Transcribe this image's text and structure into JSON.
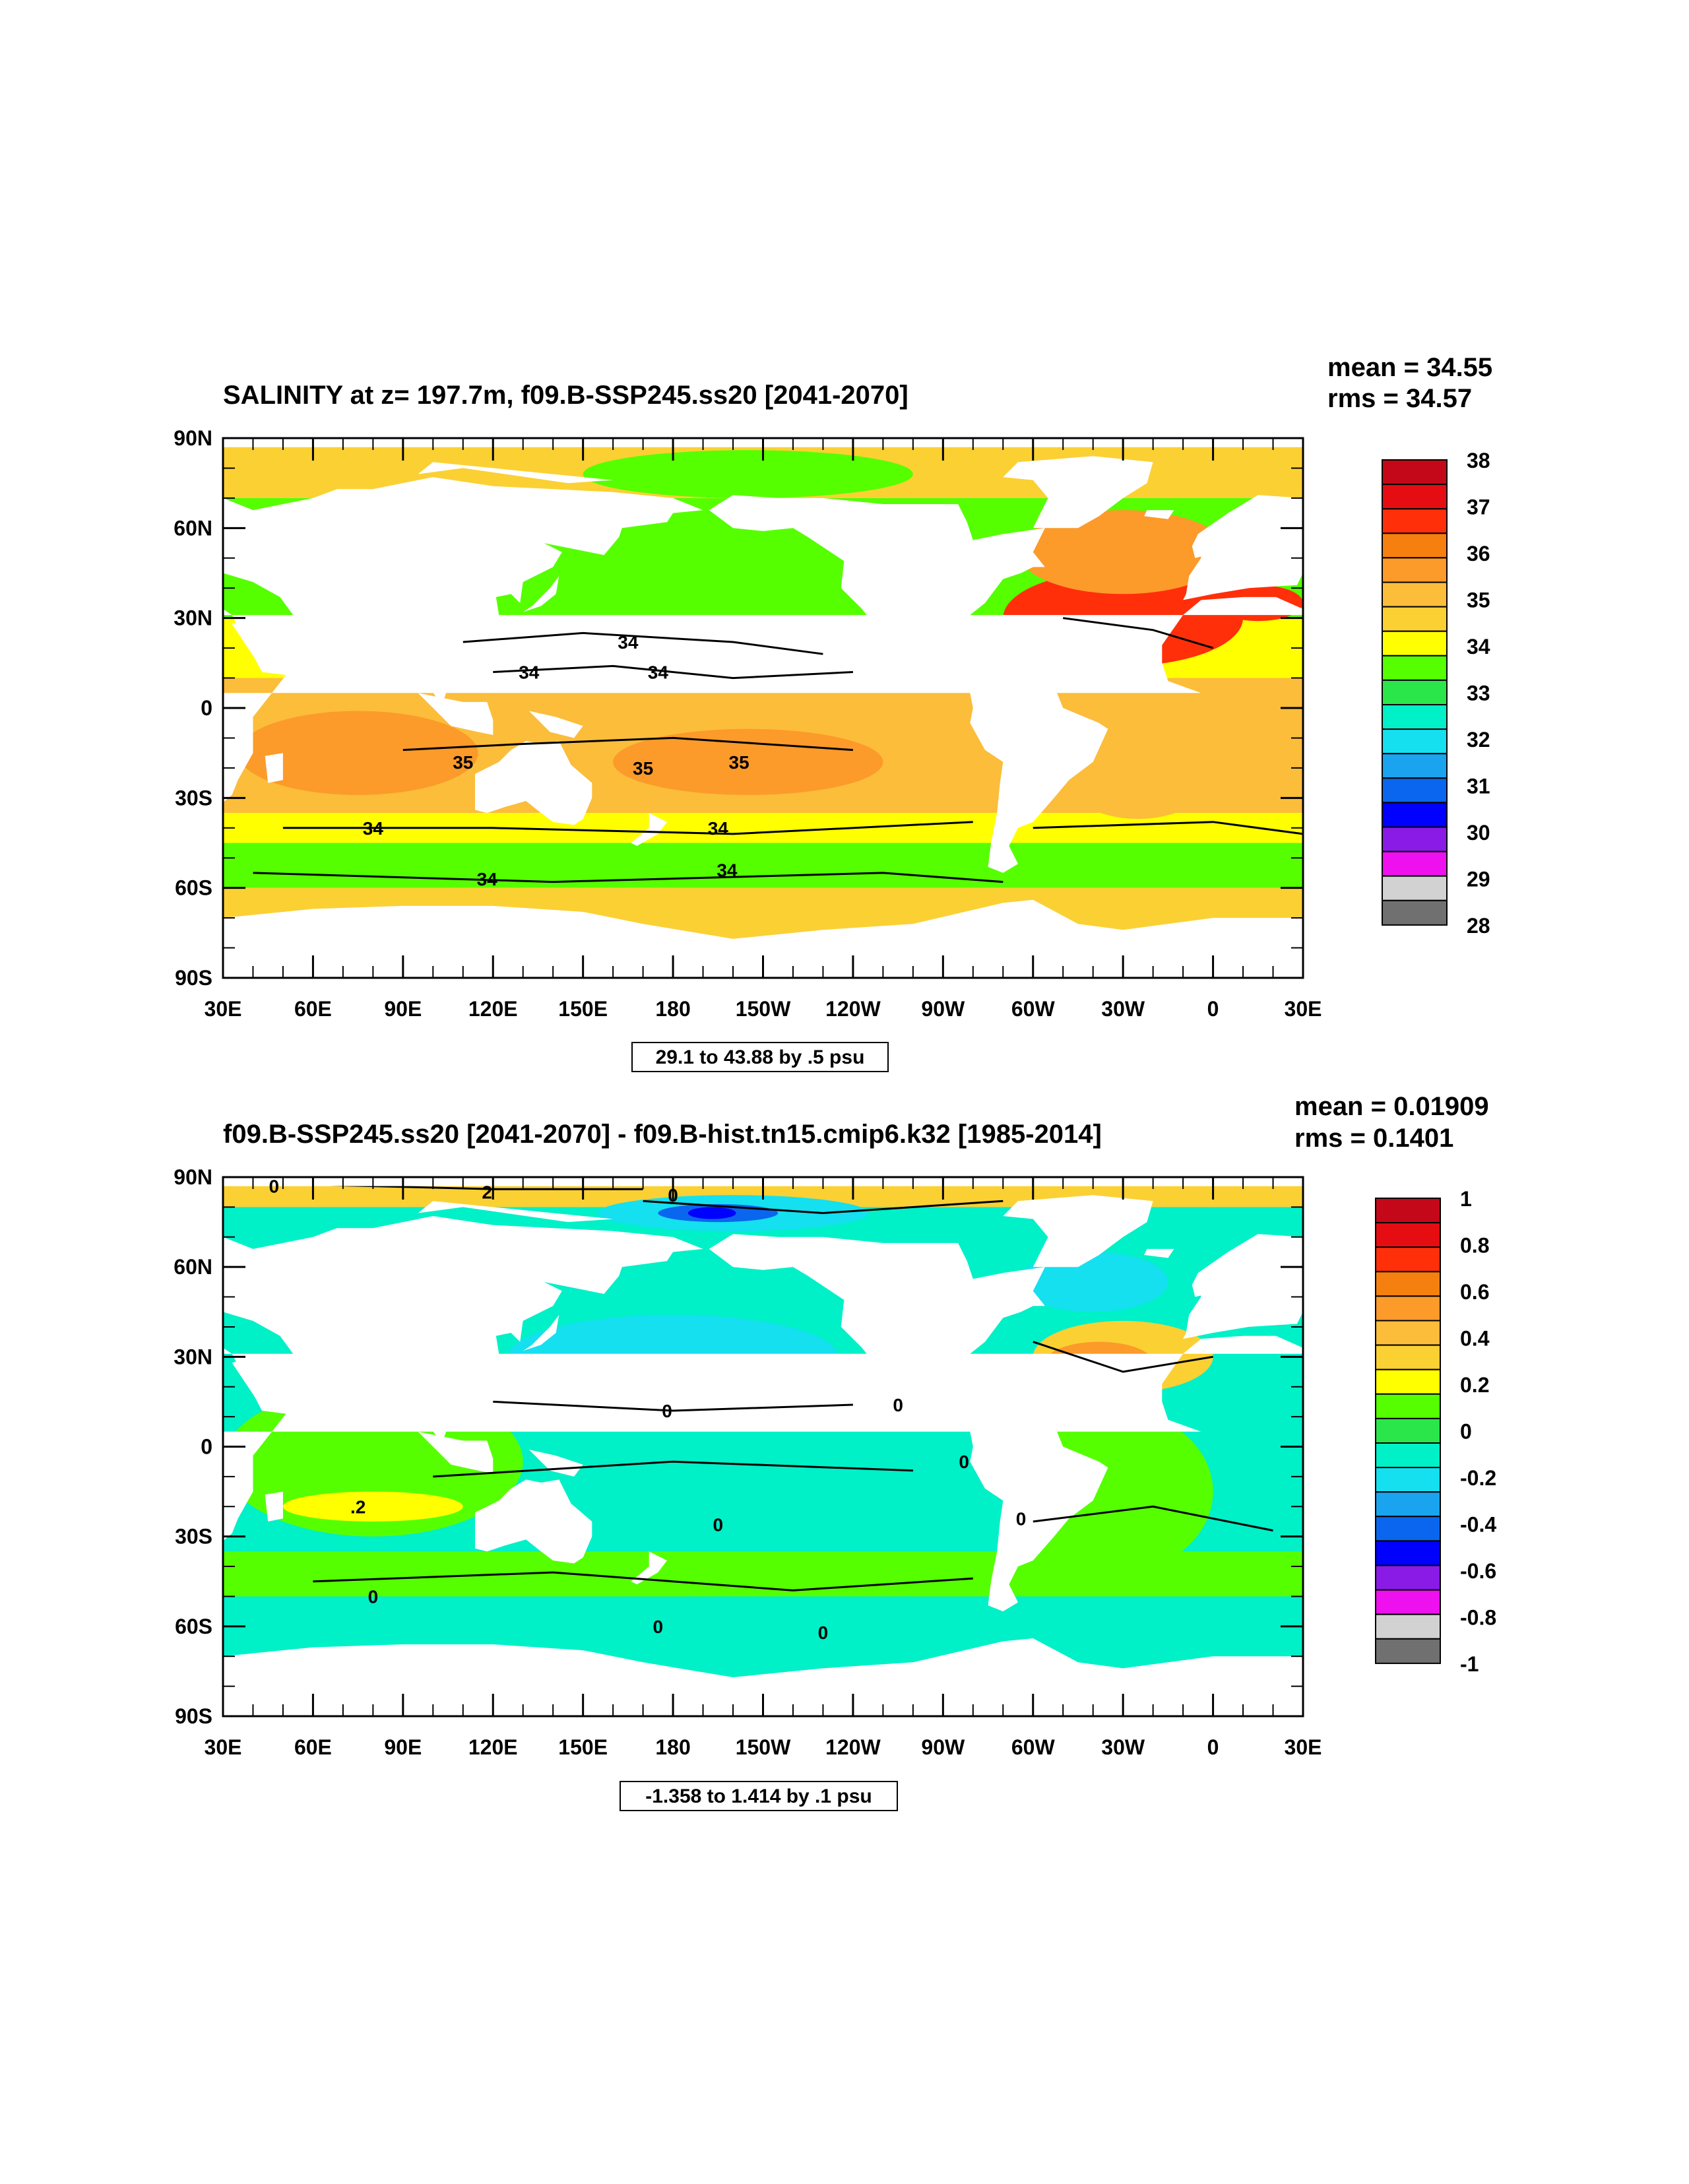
{
  "panels": [
    {
      "title": "SALINITY at z= 197.7m, f09.B-SSP245.ss20 [2041-2070]",
      "stats": {
        "mean": "mean = 34.55",
        "rms": "rms = 34.57"
      },
      "range_note": "29.1 to 43.88 by .5 psu",
      "lat_labels": [
        "90N",
        "60N",
        "30N",
        "0",
        "30S",
        "60S",
        "90S"
      ],
      "lon_labels": [
        "30E",
        "60E",
        "90E",
        "120E",
        "150E",
        "180",
        "150W",
        "120W",
        "90W",
        "60W",
        "30W",
        "0",
        "30E"
      ],
      "colorbar": {
        "labels": [
          "38",
          "37",
          "36",
          "35",
          "34",
          "33",
          "32",
          "31",
          "30",
          "29",
          "28"
        ],
        "colors": [
          "#c4081a",
          "#e60d12",
          "#ff2f0a",
          "#f5800f",
          "#fc9a2a",
          "#fbbd3a",
          "#fbd033",
          "#ffff00",
          "#55ff00",
          "#2ae64a",
          "#00f0c8",
          "#14e0f0",
          "#1aa4f0",
          "#0a66ee",
          "#0000ff",
          "#8a1ae6",
          "#ee10ee",
          "#d2d2d2",
          "#707070"
        ]
      },
      "contour_labels": [
        "34",
        "34",
        "34",
        "35",
        "35",
        "35",
        "34",
        "34",
        "34",
        "34"
      ]
    },
    {
      "title": "f09.B-SSP245.ss20 [2041-2070] - f09.B-hist.tn15.cmip6.k32 [1985-2014]",
      "stats": {
        "mean": "mean = 0.01909",
        "rms": "rms = 0.1401"
      },
      "range_note": "-1.358 to 1.414 by .1 psu",
      "lat_labels": [
        "90N",
        "60N",
        "30N",
        "0",
        "30S",
        "60S",
        "90S"
      ],
      "lon_labels": [
        "30E",
        "60E",
        "90E",
        "120E",
        "150E",
        "180",
        "150W",
        "120W",
        "90W",
        "60W",
        "30W",
        "0",
        "30E"
      ],
      "colorbar": {
        "labels": [
          "1",
          "0.8",
          "0.6",
          "0.4",
          "0.2",
          "0",
          "-0.2",
          "-0.4",
          "-0.6",
          "-0.8",
          "-1"
        ],
        "colors": [
          "#c4081a",
          "#e60d12",
          "#ff2f0a",
          "#f5800f",
          "#fc9a2a",
          "#fbbd3a",
          "#fbd033",
          "#ffff00",
          "#55ff00",
          "#2ae64a",
          "#00f0c8",
          "#14e0f0",
          "#1aa4f0",
          "#0a66ee",
          "#0000ff",
          "#8a1ae6",
          "#ee10ee",
          "#d2d2d2",
          "#707070"
        ]
      },
      "contour_labels": [
        "0",
        "2",
        "0",
        "0",
        "0",
        ".2",
        "0",
        "0",
        "0",
        "0",
        "0",
        "0"
      ]
    }
  ],
  "field_colors": {
    "land": "#ffffff",
    "panel1": {
      "arctic": "#fbd033",
      "north_pacific": "#55ff00",
      "tropical_pacific": "#ffff00",
      "subtropical_pacific": "#fbbd3a",
      "southern_band": "#55ff00",
      "antarctic": "#fbd033",
      "atlantic_north": "#ff2f0a",
      "atlantic_south": "#fbbd3a",
      "indian": "#fbbd3a",
      "indian_core": "#fc9a2a",
      "subpolar_atlantic": "#fc9a2a"
    },
    "panel2": {
      "global": "#00f0c8",
      "pacific_n": "#14e0f0",
      "indian": "#55ff00",
      "indian_band": "#ffff00",
      "atlantic_n": "#fbd033",
      "atlantic_n_core": "#fc9a2a",
      "southern": "#00f0c8",
      "arctic_low": "#0a66ee",
      "arctic_core": "#0000ff",
      "south_atlantic": "#55ff00"
    }
  }
}
